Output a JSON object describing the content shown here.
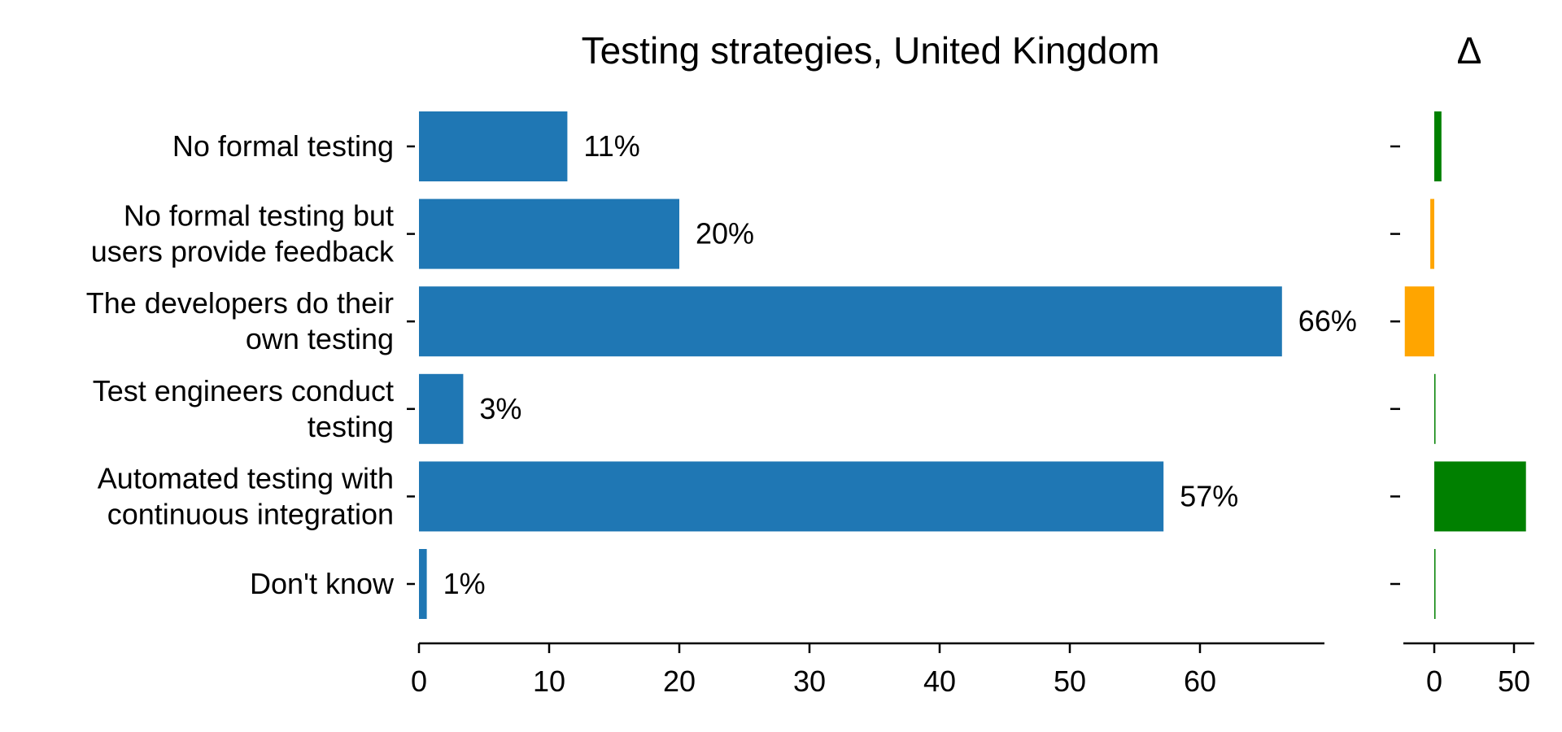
{
  "chart_data": [
    {
      "type": "bar",
      "orientation": "horizontal",
      "title": "Testing strategies, United Kingdom",
      "categories": [
        [
          "No formal testing"
        ],
        [
          "No formal testing but",
          "users provide feedback"
        ],
        [
          "The developers do their",
          "own testing"
        ],
        [
          "Test engineers conduct",
          "testing"
        ],
        [
          "Automated testing with",
          "continuous integration"
        ],
        [
          "Don't know"
        ]
      ],
      "values": [
        11.4,
        20.0,
        66.3,
        3.4,
        57.2,
        0.6
      ],
      "value_labels": [
        "11%",
        "20%",
        "66%",
        "3%",
        "57%",
        "1%"
      ],
      "xlim": [
        0,
        70
      ],
      "xticks": [
        "0",
        "10",
        "20",
        "30",
        "40",
        "50",
        "60"
      ],
      "bar_color": "#1f77b4",
      "grid": false
    },
    {
      "type": "bar",
      "orientation": "horizontal",
      "title": "Δ",
      "values": [
        4.5,
        -2.5,
        -18.5,
        0.3,
        57.5,
        0.3
      ],
      "xlim": [
        -18,
        60
      ],
      "xticks": [
        "0",
        "50"
      ],
      "positive_color": "#008000",
      "negative_color": "#ffa500",
      "grid": false
    }
  ]
}
